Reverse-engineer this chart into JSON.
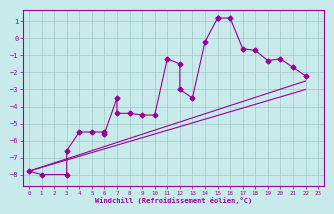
{
  "xlabel": "Windchill (Refroidissement éolien,°C)",
  "bg_color": "#c8eaea",
  "line_color": "#990099",
  "grid_color": "#a0c8c8",
  "xlim": [
    -0.5,
    23.5
  ],
  "ylim": [
    -8.7,
    1.7
  ],
  "yticks": [
    1,
    0,
    -1,
    -2,
    -3,
    -4,
    -5,
    -6,
    -7,
    -8
  ],
  "xticks": [
    0,
    1,
    2,
    3,
    4,
    5,
    6,
    7,
    8,
    9,
    10,
    11,
    12,
    13,
    14,
    15,
    16,
    17,
    18,
    19,
    20,
    21,
    22,
    23
  ],
  "line1_x": [
    0,
    1,
    3,
    3,
    4,
    5,
    6,
    6,
    7,
    7,
    8,
    9,
    10,
    11,
    12,
    12,
    13,
    14,
    15,
    15,
    16,
    17,
    18,
    19,
    20,
    21,
    22
  ],
  "line1_y": [
    -7.8,
    -8.0,
    -8.0,
    -6.6,
    -5.5,
    -5.5,
    -5.5,
    -5.6,
    -3.5,
    -4.4,
    -4.4,
    -4.5,
    -4.5,
    -1.2,
    -1.5,
    -3.0,
    -3.5,
    -0.2,
    1.2,
    1.2,
    1.2,
    -0.6,
    -0.7,
    -1.3,
    -1.2,
    -1.7,
    -2.2
  ],
  "line2_x": [
    0,
    22
  ],
  "line2_y": [
    -7.8,
    -2.5
  ],
  "line3_x": [
    0,
    22
  ],
  "line3_y": [
    -7.8,
    -2.5
  ],
  "line4_x": [
    0,
    22
  ],
  "line4_y": [
    -7.8,
    -3.0
  ]
}
